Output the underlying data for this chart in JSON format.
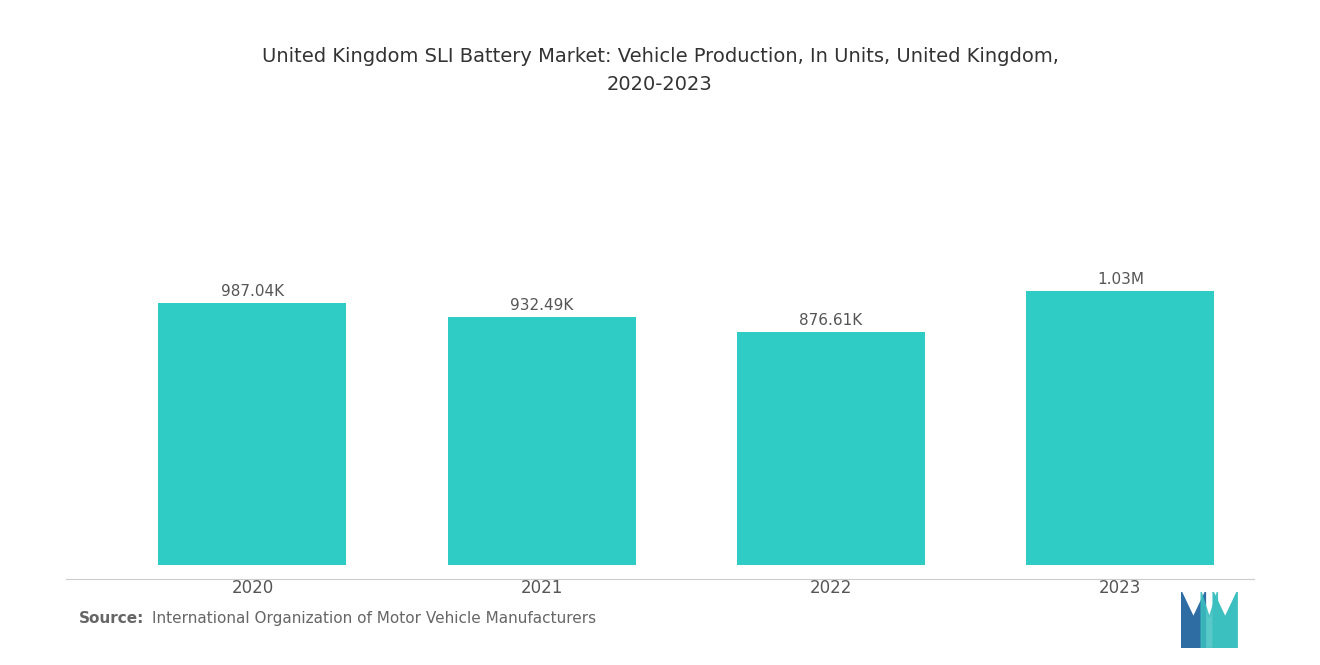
{
  "title": "United Kingdom SLI Battery Market: Vehicle Production, In Units, United Kingdom,\n2020-2023",
  "categories": [
    "2020",
    "2021",
    "2022",
    "2023"
  ],
  "values": [
    987040,
    932490,
    876610,
    1030000
  ],
  "bar_labels": [
    "987.04K",
    "932.49K",
    "876.61K",
    "1.03M"
  ],
  "bar_color": "#2ECCC4",
  "background_color": "#ffffff",
  "source_bold": "Source:",
  "source_text": "International Organization of Motor Vehicle Manufacturers",
  "title_fontsize": 14,
  "label_fontsize": 11,
  "tick_fontsize": 12,
  "source_fontsize": 11,
  "ylim": [
    0,
    1500000
  ]
}
